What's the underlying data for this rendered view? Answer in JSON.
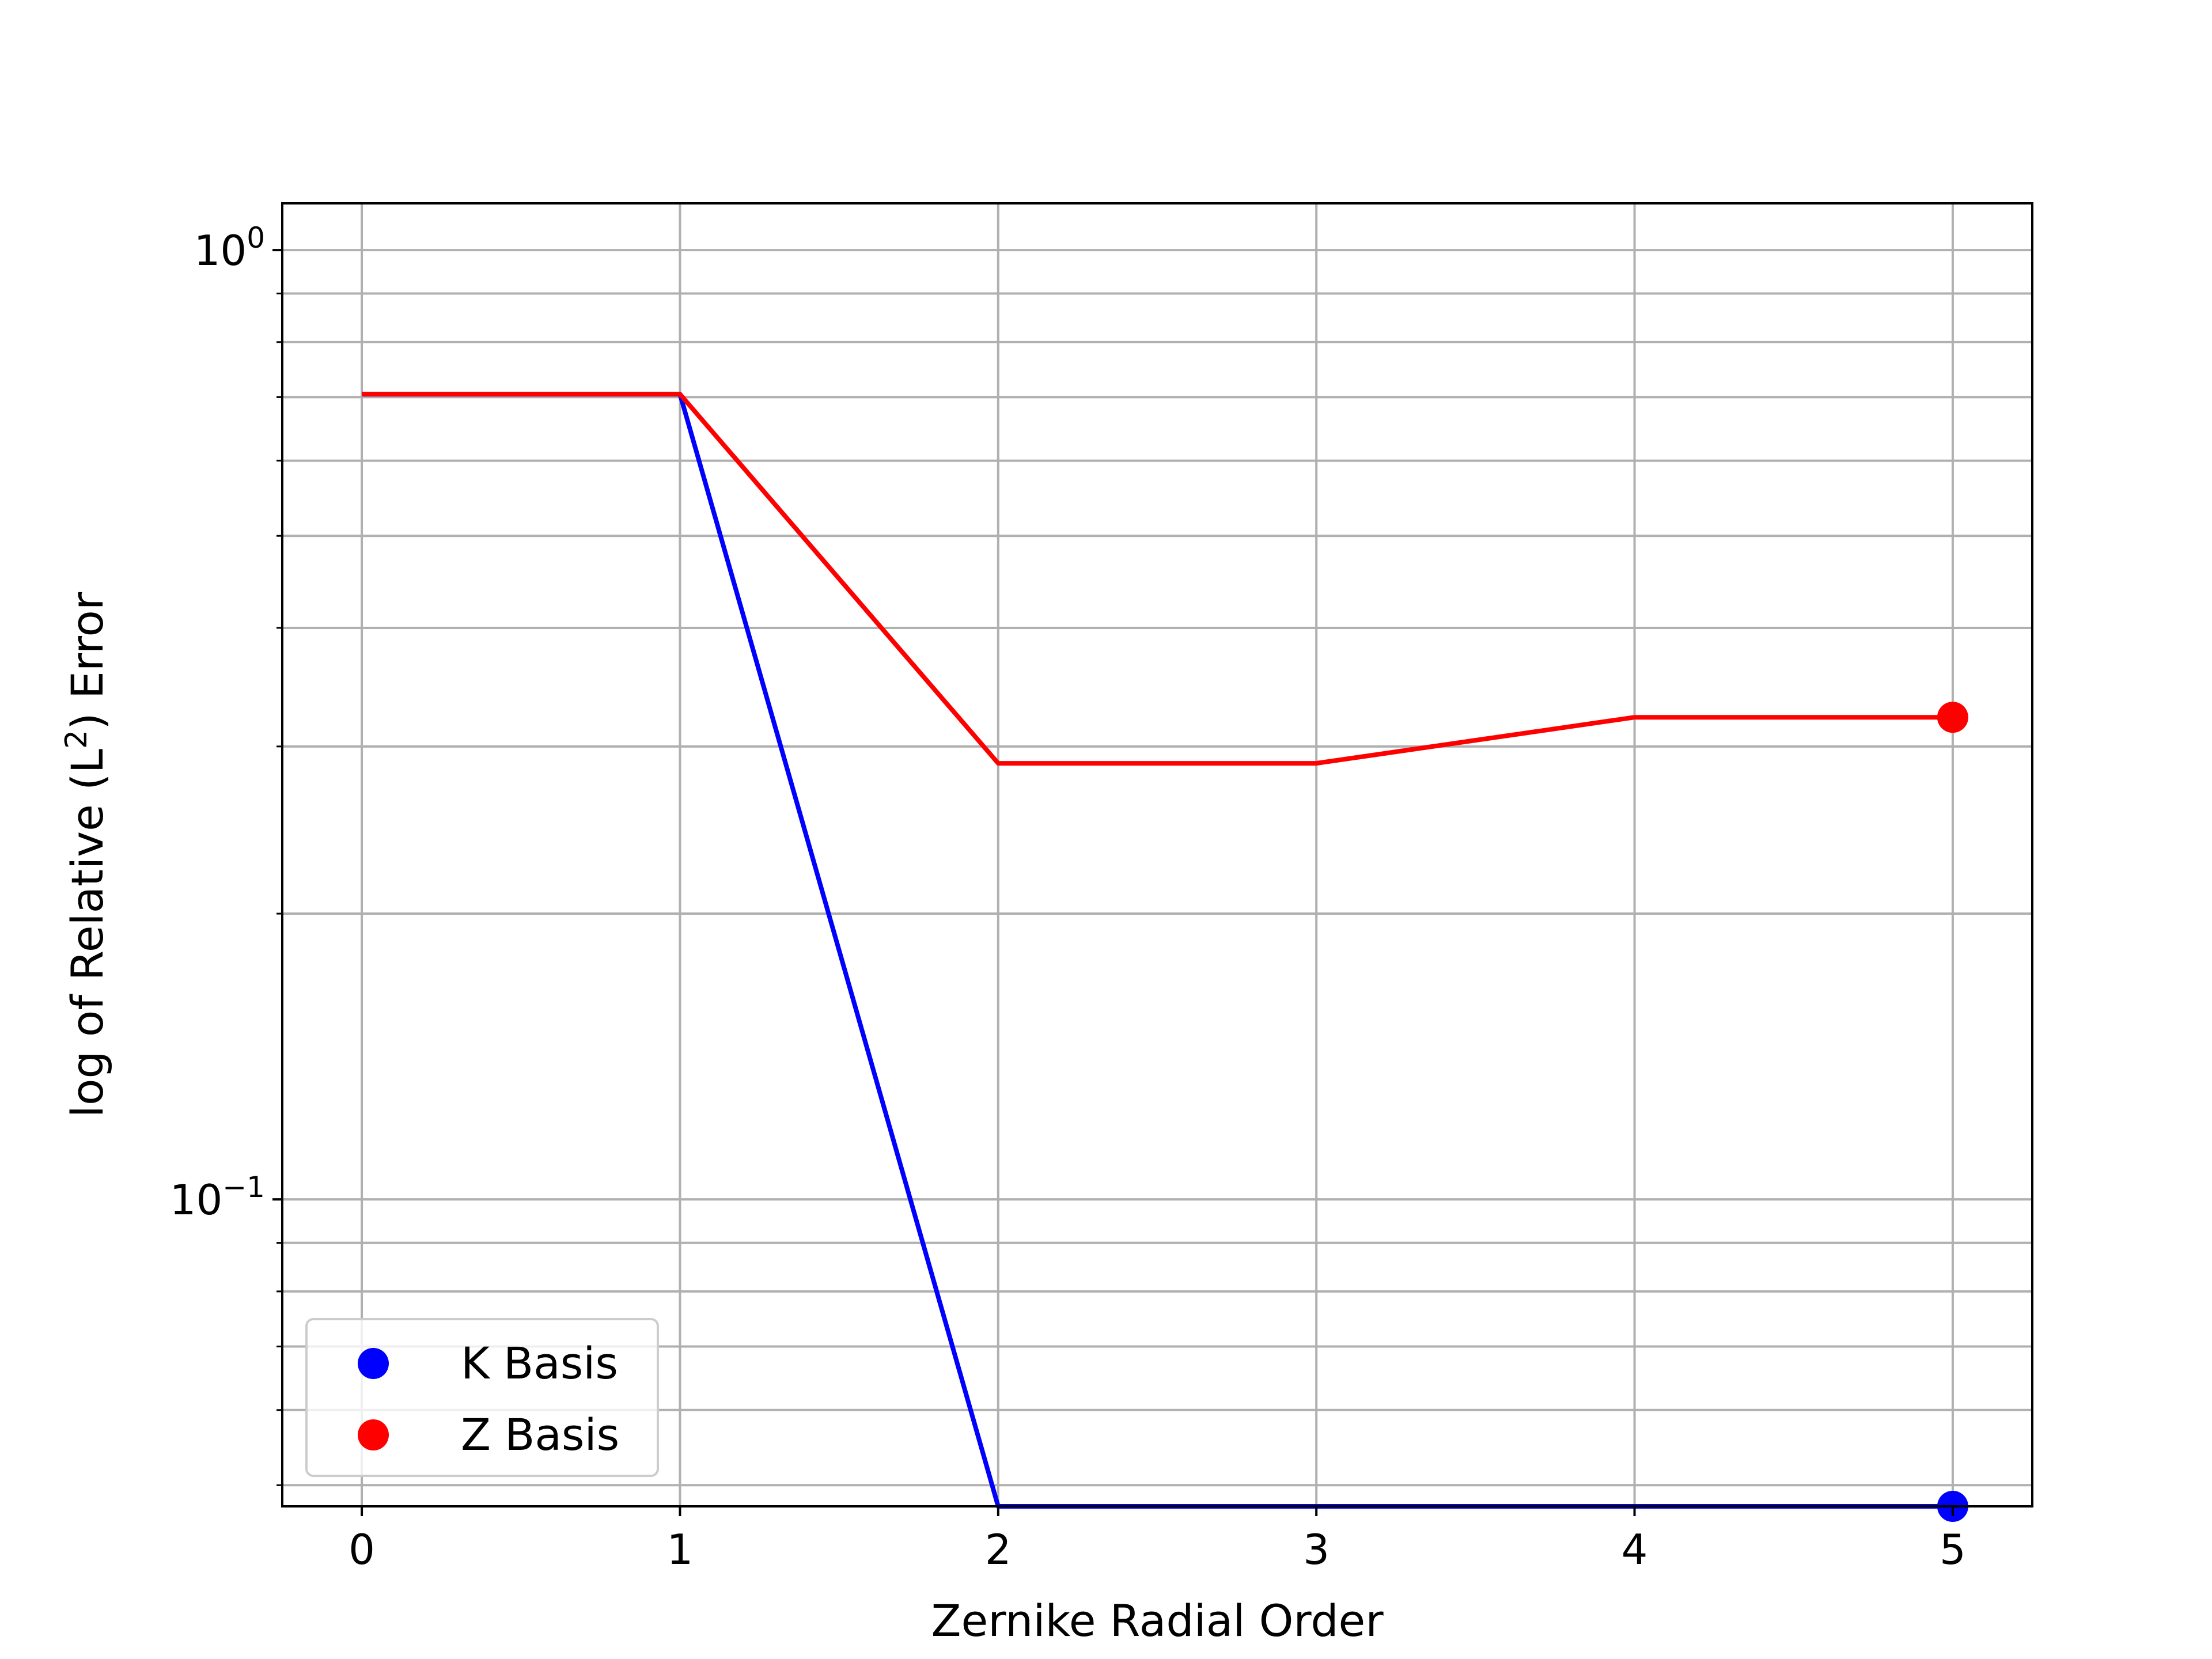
{
  "chart_data": {
    "type": "line",
    "title": "",
    "xlabel": "Zernike Radial Order",
    "ylabel_main": "log of Relative (L",
    "ylabel_sup": "2",
    "ylabel_end": ") Error",
    "yscale": "log",
    "xlim": [
      -0.25,
      5.25
    ],
    "ylim": [
      0.0475,
      1.12
    ],
    "grid": true,
    "legend_position": "lower left",
    "x": [
      0,
      1,
      2,
      3,
      4,
      5
    ],
    "x_tick_labels": [
      "0",
      "1",
      "2",
      "3",
      "4",
      "5"
    ],
    "y_major_ticks": [
      {
        "value": 1.0,
        "base": "10",
        "exp": "0"
      },
      {
        "value": 0.1,
        "base": "10",
        "exp": "−1"
      }
    ],
    "y_minor_ticks": [
      0.05,
      0.06,
      0.07,
      0.08,
      0.09,
      0.2,
      0.3,
      0.4,
      0.5,
      0.6,
      0.7,
      0.8,
      0.9
    ],
    "series": [
      {
        "name": "K Basis",
        "color": "#0000ff",
        "values": [
          0.705,
          0.705,
          0.0475,
          0.0475,
          0.0475,
          0.0475
        ],
        "marker_index": 5
      },
      {
        "name": "Z Basis",
        "color": "#ff0000",
        "values": [
          0.705,
          0.705,
          0.288,
          0.288,
          0.322,
          0.322
        ],
        "marker_index": 5
      }
    ]
  }
}
